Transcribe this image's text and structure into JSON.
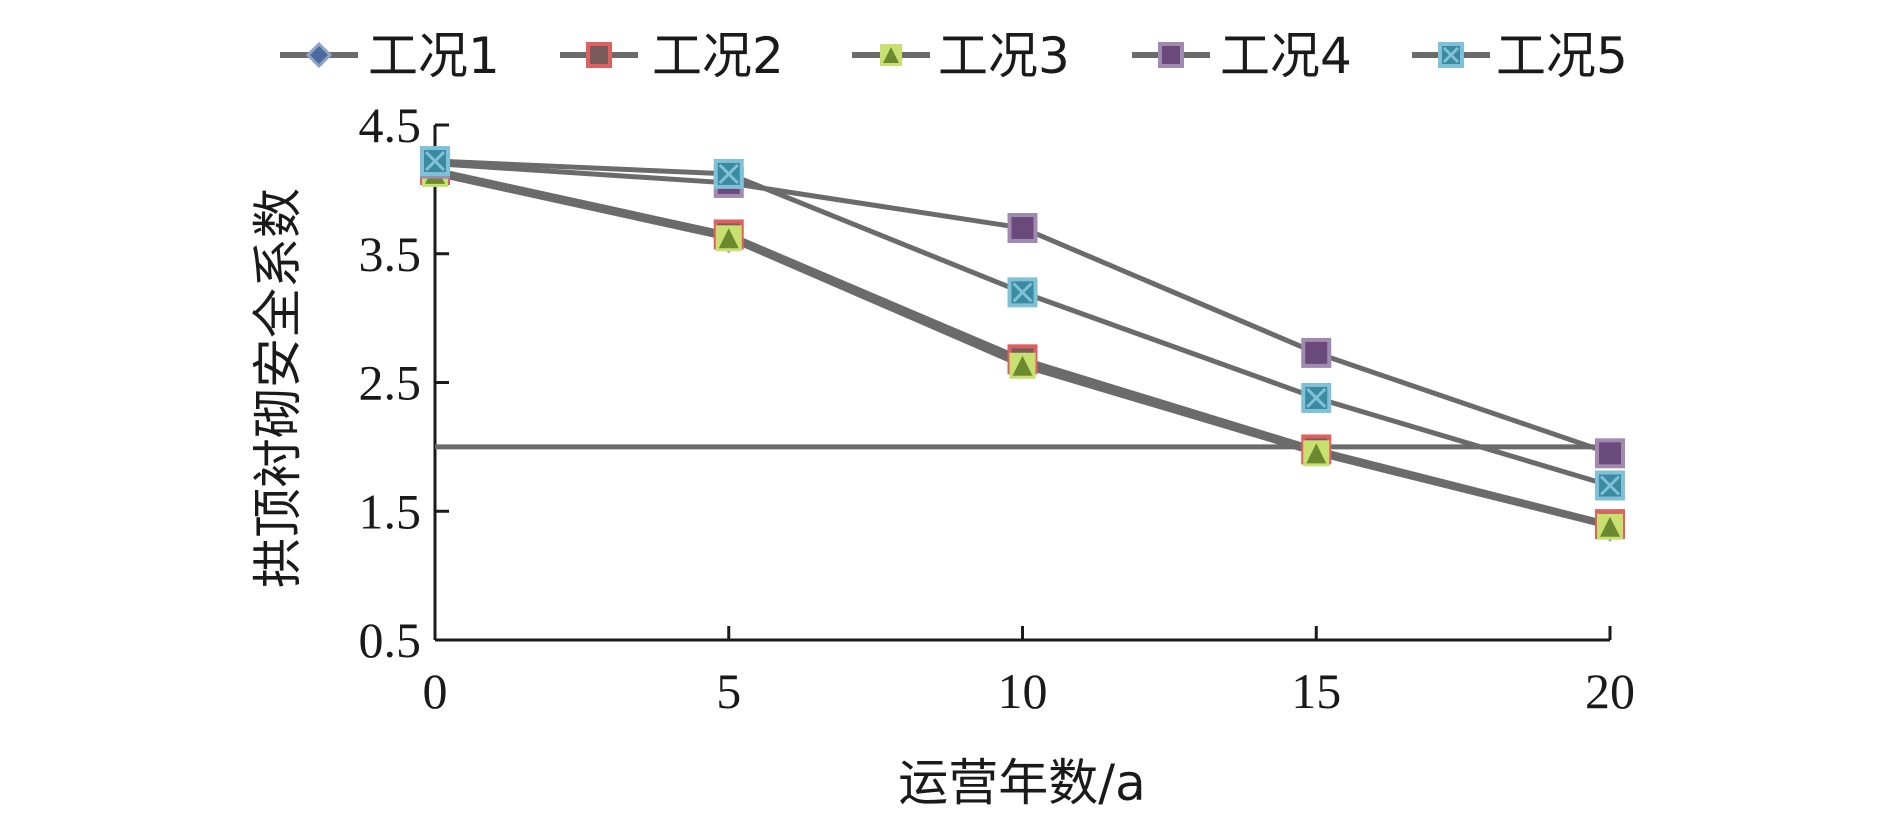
{
  "chart_data": {
    "type": "line",
    "x": [
      0,
      5,
      10,
      15,
      20
    ],
    "xlabel": "运营年数/a",
    "ylabel": "拱顶衬砌安全系数",
    "xlim": [
      0,
      20
    ],
    "ylim": [
      0.5,
      4.5
    ],
    "xticks": [
      "0",
      "5",
      "10",
      "15",
      "20"
    ],
    "yticks": [
      "0.5",
      "1.5",
      "2.5",
      "3.5",
      "4.5"
    ],
    "grid": false,
    "legend_position": "top",
    "series": [
      {
        "name": "工况1",
        "values": [
          4.15,
          3.62,
          2.65,
          1.97,
          1.38
        ],
        "line_color": "#6b6b6b",
        "marker": "diamond",
        "marker_color": "#4a6aa0",
        "marker_stroke": "#8fa3c8"
      },
      {
        "name": "工况2",
        "values": [
          4.15,
          3.65,
          2.68,
          1.98,
          1.4
        ],
        "line_color": "#6b6b6b",
        "marker": "square",
        "marker_color": "#7a5a5a",
        "marker_stroke": "#e06060"
      },
      {
        "name": "工况3",
        "values": [
          4.12,
          3.62,
          2.63,
          1.95,
          1.38
        ],
        "line_color": "#6b6b6b",
        "marker": "triangle",
        "marker_color": "#6b8a30",
        "marker_stroke": "#c8e070"
      },
      {
        "name": "工况4",
        "values": [
          4.2,
          4.05,
          3.7,
          2.73,
          1.95
        ],
        "line_color": "#6b6b6b",
        "marker": "square",
        "marker_color": "#6a4a7a",
        "marker_stroke": "#a08ab0"
      },
      {
        "name": "工况5",
        "values": [
          4.22,
          4.12,
          3.2,
          2.38,
          1.7
        ],
        "line_color": "#6b6b6b",
        "marker": "x-square",
        "marker_color": "#3a8aa0",
        "marker_stroke": "#80c0d8"
      }
    ],
    "reference_line": {
      "y": 2.0,
      "color": "#6b6b6b"
    }
  }
}
